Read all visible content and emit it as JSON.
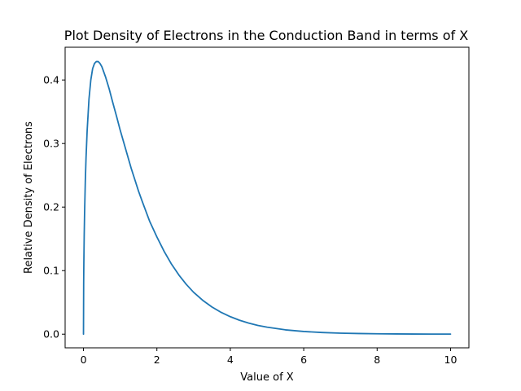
{
  "chart_data": {
    "type": "line",
    "title": "Plot Density of Electrons in the Conduction Band in terms of X",
    "xlabel": "Value of X",
    "ylabel": "Relative Density of Electrons",
    "xlim": [
      -0.5,
      10.5
    ],
    "ylim": [
      -0.0215,
      0.4515
    ],
    "xticks": [
      0,
      2,
      4,
      6,
      8,
      10
    ],
    "xtick_labels": [
      "0",
      "2",
      "4",
      "6",
      "8",
      "10"
    ],
    "yticks": [
      0.0,
      0.1,
      0.2,
      0.3,
      0.4
    ],
    "ytick_labels": [
      "0.0",
      "0.1",
      "0.2",
      "0.3",
      "0.4"
    ],
    "grid": false,
    "series": [
      {
        "color": "#1f77b4",
        "x": [
          0,
          0.005,
          0.01,
          0.02,
          0.03,
          0.05,
          0.07,
          0.1,
          0.15,
          0.2,
          0.25,
          0.3,
          0.35,
          0.4,
          0.45,
          0.5,
          0.55,
          0.6,
          0.7,
          0.8,
          0.9,
          1.0,
          1.1,
          1.2,
          1.3,
          1.4,
          1.5,
          1.6,
          1.8,
          2.0,
          2.2,
          2.4,
          2.6,
          2.8,
          3.0,
          3.25,
          3.5,
          3.75,
          4.0,
          4.25,
          4.5,
          4.75,
          5.0,
          5.5,
          6.0,
          6.5,
          7.0,
          7.5,
          8.0,
          8.5,
          9.0,
          9.5,
          10.0
        ],
        "y": [
          0,
          0.08,
          0.112,
          0.157,
          0.19,
          0.241,
          0.278,
          0.32,
          0.37,
          0.4,
          0.418,
          0.426,
          0.429,
          0.429,
          0.426,
          0.421,
          0.413,
          0.405,
          0.386,
          0.364,
          0.343,
          0.321,
          0.301,
          0.281,
          0.261,
          0.243,
          0.225,
          0.209,
          0.178,
          0.153,
          0.13,
          0.11,
          0.093,
          0.0784,
          0.0659,
          0.0532,
          0.0428,
          0.0343,
          0.0275,
          0.0219,
          0.0174,
          0.0138,
          0.011,
          0.0068,
          0.0042,
          0.0026,
          0.0016,
          0.001,
          0.0006,
          0.0004,
          0.0002,
          0.0001,
          0.0001
        ]
      }
    ]
  }
}
